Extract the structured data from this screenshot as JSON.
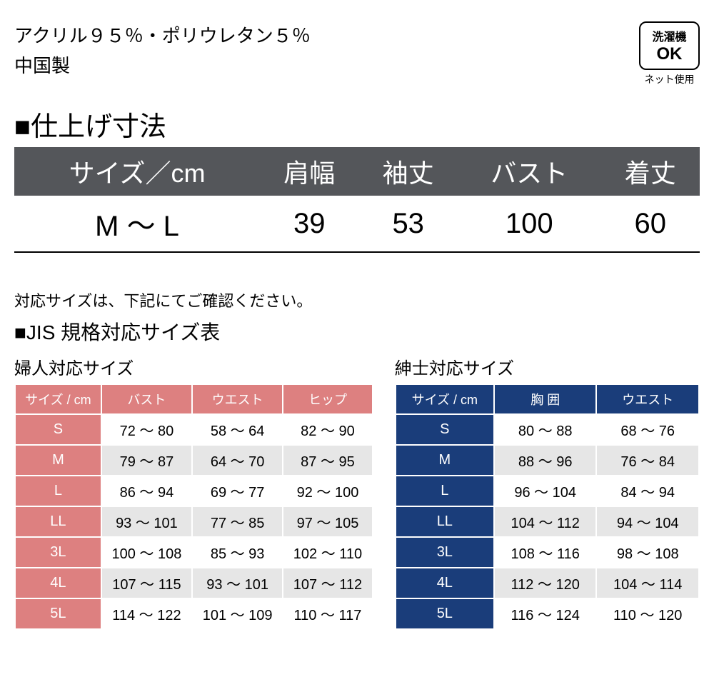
{
  "material": {
    "composition": "アクリル９５％・ポリウレタン５％",
    "origin": "中国製"
  },
  "wash_badge": {
    "line1": "洗濯機",
    "line2": "OK",
    "under": "ネット使用"
  },
  "finish_section": {
    "heading": "■仕上げ寸法",
    "headers": [
      "サイズ／cm",
      "肩幅",
      "袖丈",
      "バスト",
      "着丈"
    ],
    "row": [
      "M ～ L",
      "39",
      "53",
      "100",
      "60"
    ],
    "header_bg": "#54565a",
    "header_color": "#ffffff"
  },
  "note": "対応サイズは、下記にてご確認ください。",
  "jis_heading": "■JIS 規格対応サイズ表",
  "ladies": {
    "subtitle": "婦人対応サイズ",
    "headers": [
      "サイズ / cm",
      "バスト",
      "ウエスト",
      "ヒップ"
    ],
    "sizes": [
      "S",
      "M",
      "L",
      "LL",
      "3L",
      "4L",
      "5L"
    ],
    "rows": [
      [
        "72 ～ 80",
        "58 ～ 64",
        "82 ～ 90"
      ],
      [
        "79 ～ 87",
        "64 ～ 70",
        "87 ～ 95"
      ],
      [
        "86 ～ 94",
        "69 ～ 77",
        "92 ～ 100"
      ],
      [
        "93 ～ 101",
        "77 ～ 85",
        "97 ～ 105"
      ],
      [
        "100 ～ 108",
        "85 ～ 93",
        "102 ～ 110"
      ],
      [
        "107 ～ 115",
        "93 ～ 101",
        "107 ～ 112"
      ],
      [
        "114 ～ 122",
        "101 ～ 109",
        "110 ～ 117"
      ]
    ],
    "accent_color": "#dd8080"
  },
  "mens": {
    "subtitle": "紳士対応サイズ",
    "headers": [
      "サイズ / cm",
      "胸 囲",
      "ウエスト"
    ],
    "sizes": [
      "S",
      "M",
      "L",
      "LL",
      "3L",
      "4L",
      "5L"
    ],
    "rows": [
      [
        "80 ～ 88",
        "68 ～ 76"
      ],
      [
        "88 ～ 96",
        "76 ～ 84"
      ],
      [
        "96 ～ 104",
        "84 ～ 94"
      ],
      [
        "104 ～ 112",
        "94 ～ 104"
      ],
      [
        "108 ～ 116",
        "98 ～ 108"
      ],
      [
        "112 ～ 120",
        "104 ～ 114"
      ],
      [
        "116 ～ 124",
        "110 ～ 120"
      ]
    ],
    "accent_color": "#1a3d7a"
  },
  "row_alt_colors": {
    "even": "#ffffff",
    "odd": "#e6e6e6"
  }
}
